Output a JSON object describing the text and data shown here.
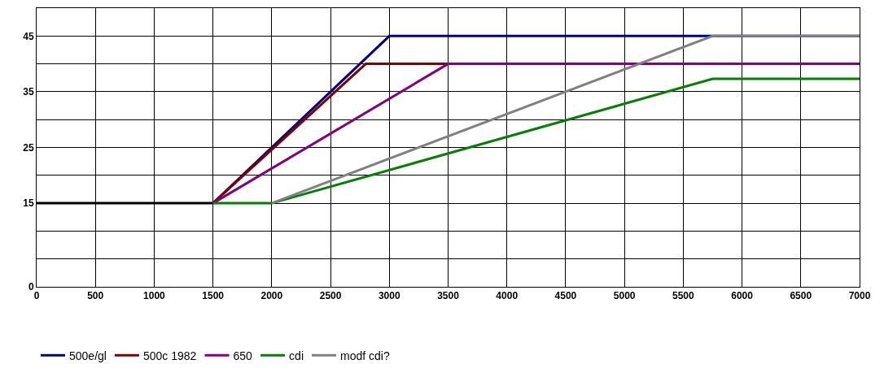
{
  "chart_data": {
    "type": "line",
    "xlim": [
      0,
      7000
    ],
    "ylim": [
      0,
      50
    ],
    "xticks": [
      0,
      500,
      1000,
      1500,
      2000,
      2500,
      3000,
      3500,
      4000,
      4500,
      5000,
      5500,
      6000,
      6500,
      7000
    ],
    "yticks": [
      0,
      {
        "value": 5,
        "label": null
      },
      {
        "value": 10,
        "label": null
      },
      15,
      {
        "value": 20,
        "label": null
      },
      25,
      {
        "value": 30,
        "label": null
      },
      35,
      {
        "value": 40,
        "label": null
      },
      45,
      {
        "value": 50,
        "label": null
      }
    ],
    "grid": true,
    "legend": "bottom",
    "marker": "none",
    "line_style": "solid",
    "series": [
      {
        "color": "#000000",
        "x": [
          0,
          1500
        ],
        "values": [
          15,
          15
        ]
      },
      {
        "name": "500e/gl",
        "color": "#000080",
        "x": [
          1500,
          3000,
          7000
        ],
        "values": [
          15,
          45,
          45
        ]
      },
      {
        "name": "500c 1982",
        "color": "#800000",
        "x": [
          1500,
          2800,
          3500
        ],
        "values": [
          15,
          40,
          40
        ]
      },
      {
        "name": "650",
        "color": "#800080",
        "x": [
          1500,
          3500,
          7000
        ],
        "values": [
          15,
          40,
          40
        ]
      },
      {
        "name": "cdi",
        "color": "#008000",
        "x": [
          1500,
          2000,
          5750,
          7000
        ],
        "values": [
          15,
          15,
          37.3,
          37.3
        ]
      },
      {
        "name": "modf cdi?",
        "color": "#808080",
        "x": [
          2000,
          5750,
          7000
        ],
        "values": [
          15,
          45,
          45
        ]
      }
    ]
  }
}
